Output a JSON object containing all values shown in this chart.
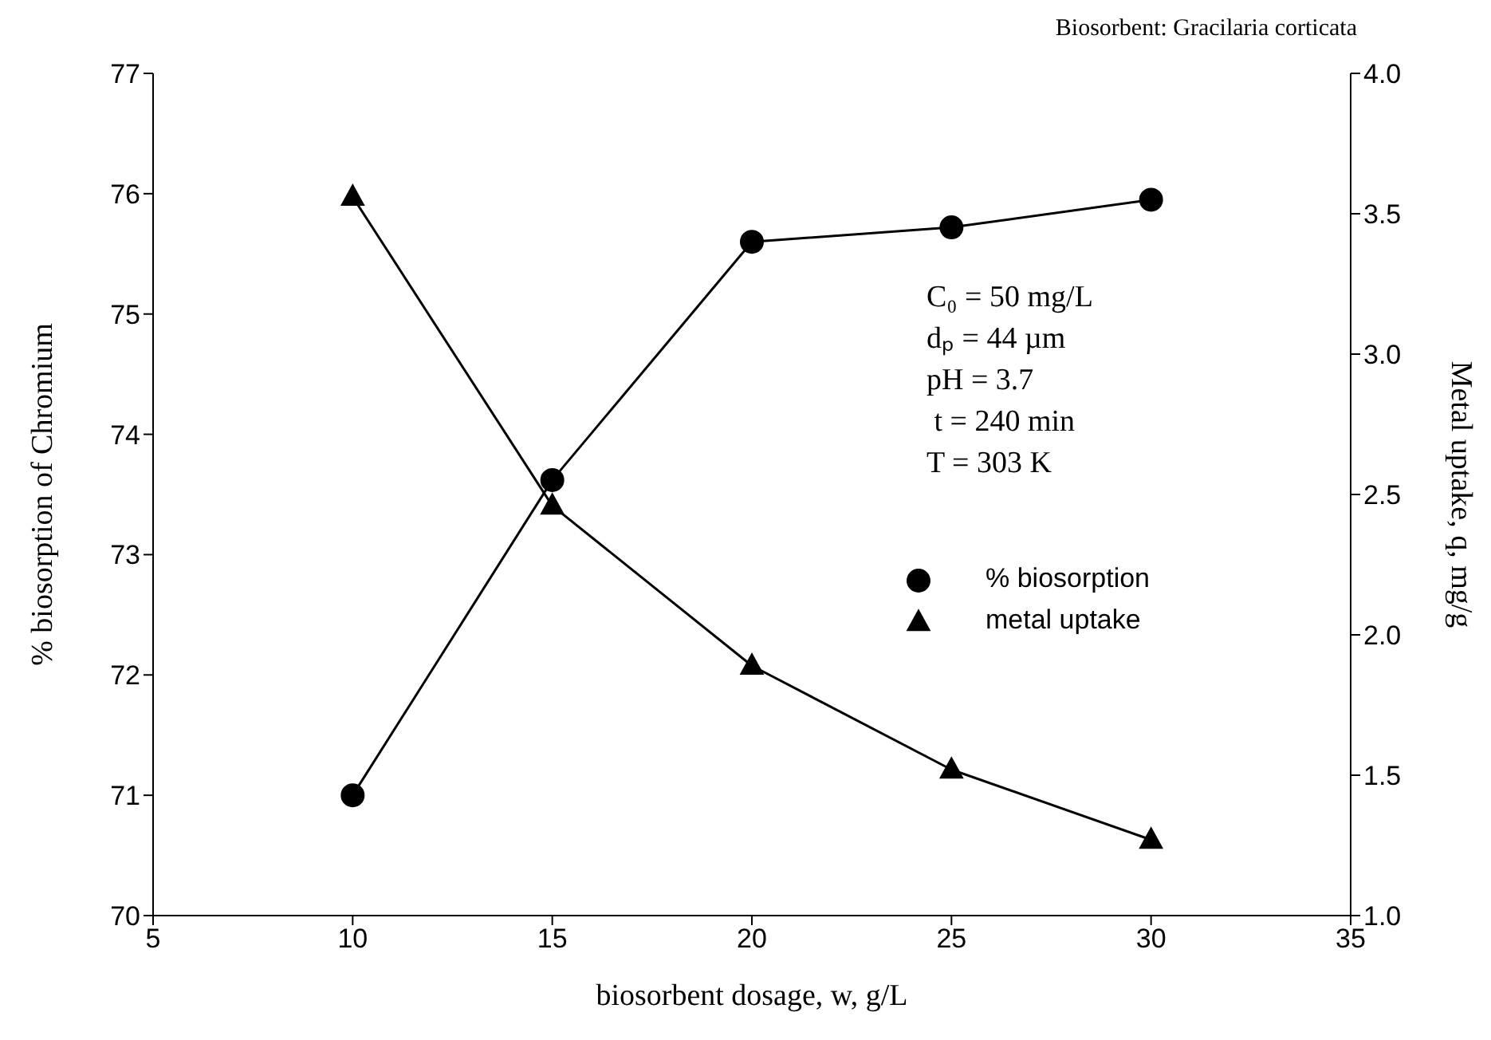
{
  "chart_data": {
    "type": "line",
    "xlabel": "biosorbent dosage, w, g/L",
    "ylabel": "% biosorption of Chromium",
    "y2label": "Metal uptake, q, mg/g",
    "x": [
      10,
      15,
      20,
      25,
      30
    ],
    "series": [
      {
        "name": "% biosorption",
        "color": "#000000",
        "marker": "circle",
        "values": [
          71.0,
          73.62,
          75.6,
          75.72,
          75.95
        ]
      },
      {
        "name": "metal uptake",
        "color": "#000000",
        "marker": "triangle",
        "axis": "y2",
        "values": [
          3.56,
          2.46,
          1.89,
          1.52,
          1.27
        ]
      }
    ],
    "xlim": [
      5,
      35
    ],
    "xticks": [
      5,
      10,
      15,
      20,
      25,
      30,
      35
    ],
    "ylim": [
      70,
      77
    ],
    "yticks": [
      70,
      71,
      72,
      73,
      74,
      75,
      76,
      77
    ],
    "y2lim": [
      1.0,
      4.0
    ],
    "y2ticks": [
      {
        "value": 1.0,
        "label": "1.0"
      },
      {
        "value": 1.5,
        "label": "1.5"
      },
      {
        "value": 2.0,
        "label": "2.0"
      },
      {
        "value": 2.5,
        "label": "2.5"
      },
      {
        "value": 3.0,
        "label": "3.0"
      },
      {
        "value": 3.5,
        "label": "3.5"
      },
      {
        "value": 4.0,
        "label": "4.0"
      }
    ],
    "annotations": [
      "Biosorbent: Gracilaria corticata",
      "C₀ = 50 mg/L",
      "dₚ = 44 µm",
      "pH = 3.7",
      " t = 240 min",
      "T = 303 K"
    ],
    "legend": "right",
    "grid": false
  }
}
